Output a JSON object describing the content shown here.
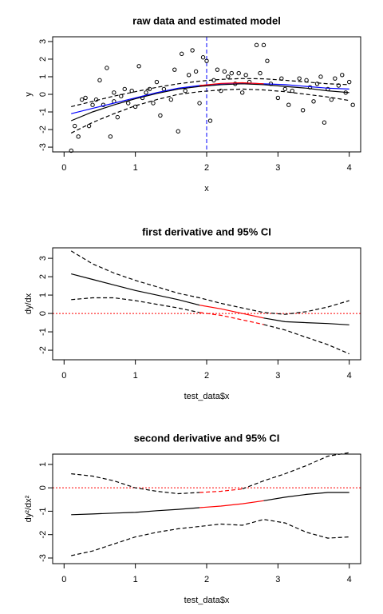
{
  "chart_data": [
    {
      "type": "line",
      "title": "raw data and estimated model",
      "xlabel": "x",
      "ylabel": "y",
      "xlim": [
        -0.16,
        4.16
      ],
      "ylim": [
        -3.27,
        3.27
      ],
      "xticks": [
        0,
        1,
        2,
        3,
        4
      ],
      "yticks": [
        -3,
        -2,
        -1,
        0,
        1,
        2,
        3
      ],
      "vline": {
        "value": 2,
        "color": "#0000ff",
        "line_style": "dashed"
      },
      "scatter": {
        "color": "#000000",
        "x": [
          0.1,
          0.15,
          0.2,
          0.25,
          0.3,
          0.35,
          0.4,
          0.45,
          0.5,
          0.55,
          0.6,
          0.65,
          0.7,
          0.75,
          0.8,
          0.85,
          0.9,
          0.95,
          1.0,
          1.05,
          1.1,
          1.2,
          1.25,
          1.3,
          1.35,
          1.4,
          1.5,
          1.55,
          1.6,
          1.65,
          1.7,
          1.75,
          1.8,
          1.85,
          1.9,
          1.95,
          2.0,
          2.05,
          2.1,
          2.15,
          2.2,
          2.3,
          2.35,
          2.4,
          2.45,
          2.5,
          2.55,
          2.6,
          2.7,
          2.75,
          2.8,
          2.85,
          2.9,
          3.0,
          3.05,
          3.1,
          3.15,
          3.2,
          3.3,
          3.35,
          3.4,
          3.5,
          3.55,
          3.6,
          3.65,
          3.7,
          3.75,
          3.8,
          3.85,
          3.9,
          3.95,
          4.0,
          4.05,
          3.45,
          2.25,
          1.15,
          0.7
        ],
        "y": [
          -3.2,
          -1.8,
          -2.4,
          -0.3,
          -0.2,
          -1.8,
          -0.6,
          -0.3,
          0.8,
          -0.6,
          1.5,
          -2.4,
          -0.4,
          -1.3,
          -0.1,
          0.3,
          -0.5,
          0.2,
          -0.7,
          1.6,
          -0.2,
          0.3,
          -0.5,
          0.7,
          -1.2,
          0.3,
          -0.3,
          1.4,
          -2.1,
          2.3,
          0.2,
          1.1,
          2.5,
          1.3,
          -0.5,
          2.1,
          1.9,
          -1.5,
          0.8,
          1.4,
          0.2,
          1.0,
          1.2,
          0.6,
          1.2,
          0.1,
          1.1,
          0.7,
          2.8,
          1.2,
          2.8,
          1.9,
          0.6,
          -0.2,
          0.9,
          0.3,
          -0.6,
          0.2,
          0.9,
          -0.9,
          0.8,
          -0.4,
          0.6,
          1.0,
          -1.6,
          0.3,
          -0.3,
          0.9,
          0.5,
          1.1,
          0.1,
          0.7,
          -0.6,
          0.4,
          1.3,
          0.1,
          0.1
        ]
      },
      "x": [
        0.1,
        0.4,
        0.7,
        1.0,
        1.3,
        1.6,
        1.9,
        2.2,
        2.5,
        2.8,
        3.1,
        3.4,
        3.7,
        4.0
      ],
      "series": [
        {
          "color": "#000000",
          "line_style": "solid",
          "values": [
            -1.5,
            -1.0,
            -0.6,
            -0.25,
            0.05,
            0.3,
            0.45,
            0.55,
            0.6,
            0.55,
            0.45,
            0.35,
            0.2,
            0.1
          ]
        },
        {
          "color": "#000000",
          "line_style": "dashed",
          "values": [
            -0.7,
            -0.4,
            -0.1,
            0.15,
            0.4,
            0.6,
            0.75,
            0.85,
            0.9,
            0.88,
            0.8,
            0.7,
            0.6,
            0.55
          ]
        },
        {
          "color": "#000000",
          "line_style": "dashed",
          "values": [
            -2.2,
            -1.6,
            -1.1,
            -0.65,
            -0.3,
            0,
            0.15,
            0.25,
            0.3,
            0.25,
            0.15,
            0,
            -0.15,
            -0.35
          ]
        },
        {
          "color": "#0000ff",
          "line_style": "solid",
          "values": [
            -1.1,
            -0.8,
            -0.5,
            -0.2,
            0.1,
            0.35,
            0.5,
            0.6,
            0.65,
            0.6,
            0.55,
            0.45,
            0.35,
            0.3
          ]
        },
        {
          "color": "#ff0000",
          "line_style": "solid",
          "values": [
            null,
            null,
            null,
            null,
            null,
            null,
            0.5,
            0.62,
            0.66,
            0.6,
            null,
            null,
            null,
            null
          ]
        }
      ]
    },
    {
      "type": "line",
      "title": "first derivative and 95% CI",
      "xlabel": "test_data$x",
      "ylabel": "dy/dx",
      "xlim": [
        -0.16,
        4.16
      ],
      "ylim": [
        -2.52,
        3.57
      ],
      "xticks": [
        0,
        1,
        2,
        3,
        4
      ],
      "yticks": [
        -2,
        -1,
        0,
        1,
        2,
        3
      ],
      "hline": {
        "value": 0,
        "color": "#ff0000",
        "line_style": "dotted"
      },
      "x": [
        0.1,
        0.4,
        0.7,
        1.0,
        1.3,
        1.6,
        1.9,
        2.2,
        2.5,
        2.8,
        3.1,
        3.4,
        3.7,
        4.0
      ],
      "series": [
        {
          "color": "#000000",
          "line_style": "solid",
          "values": [
            2.15,
            1.85,
            1.55,
            1.25,
            1.0,
            0.75,
            0.45,
            null,
            null,
            -0.25,
            -0.45,
            -0.5,
            -0.55,
            -0.62
          ]
        },
        {
          "color": "#000000",
          "line_style": "dashed",
          "values": [
            3.4,
            2.7,
            2.2,
            1.8,
            1.45,
            1.1,
            0.85,
            0.55,
            0.3,
            0.05,
            -0.05,
            0.1,
            0.35,
            0.7
          ]
        },
        {
          "color": "#000000",
          "line_style": "dashed",
          "values": [
            0.75,
            0.85,
            0.85,
            0.7,
            0.5,
            0.3,
            0.05,
            null,
            null,
            -0.6,
            -0.9,
            -1.3,
            -1.7,
            -2.2
          ]
        },
        {
          "color": "#ff0000",
          "line_style": "solid",
          "values": [
            null,
            null,
            null,
            null,
            null,
            null,
            0.45,
            0.25,
            0.0,
            -0.25,
            null,
            null,
            null,
            null
          ]
        },
        {
          "color": "#ff0000",
          "line_style": "dashed",
          "values": [
            null,
            null,
            null,
            null,
            null,
            null,
            0.05,
            -0.1,
            -0.35,
            -0.6,
            null,
            null,
            null,
            null
          ]
        }
      ]
    },
    {
      "type": "line",
      "title": "second derivative and 95% CI",
      "xlabel": "test_data$x",
      "ylabel": "dy²/dx²",
      "xlim": [
        -0.16,
        4.16
      ],
      "ylim": [
        -3.24,
        1.44
      ],
      "xticks": [
        0,
        1,
        2,
        3,
        4
      ],
      "yticks": [
        -3,
        -2,
        -1,
        0,
        1
      ],
      "hline": {
        "value": 0,
        "color": "#ff0000",
        "line_style": "dotted"
      },
      "x": [
        0.1,
        0.4,
        0.7,
        1.0,
        1.3,
        1.6,
        1.9,
        2.2,
        2.5,
        2.8,
        3.1,
        3.4,
        3.7,
        4.0
      ],
      "series": [
        {
          "color": "#000000",
          "line_style": "solid",
          "values": [
            -1.15,
            -1.12,
            -1.08,
            -1.05,
            -0.98,
            -0.92,
            -0.85,
            null,
            null,
            -0.55,
            -0.4,
            -0.28,
            -0.2,
            -0.2
          ]
        },
        {
          "color": "#000000",
          "line_style": "dashed",
          "values": [
            0.6,
            0.5,
            0.3,
            0.0,
            -0.15,
            -0.25,
            -0.2,
            null,
            -0.05,
            0.3,
            0.6,
            0.95,
            1.35,
            1.5
          ]
        },
        {
          "color": "#000000",
          "line_style": "dashed",
          "values": [
            -2.9,
            -2.7,
            -2.4,
            -2.1,
            -1.9,
            -1.75,
            -1.65,
            -1.55,
            -1.6,
            -1.35,
            -1.5,
            -1.9,
            -2.15,
            -2.1
          ]
        },
        {
          "color": "#ff0000",
          "line_style": "solid",
          "values": [
            null,
            null,
            null,
            null,
            null,
            null,
            -0.85,
            -0.78,
            -0.68,
            -0.55,
            null,
            null,
            null,
            null
          ]
        },
        {
          "color": "#ff0000",
          "line_style": "dashed",
          "values": [
            null,
            null,
            null,
            null,
            null,
            null,
            -0.2,
            -0.15,
            -0.05,
            null,
            null,
            null,
            null,
            null
          ]
        }
      ]
    }
  ]
}
